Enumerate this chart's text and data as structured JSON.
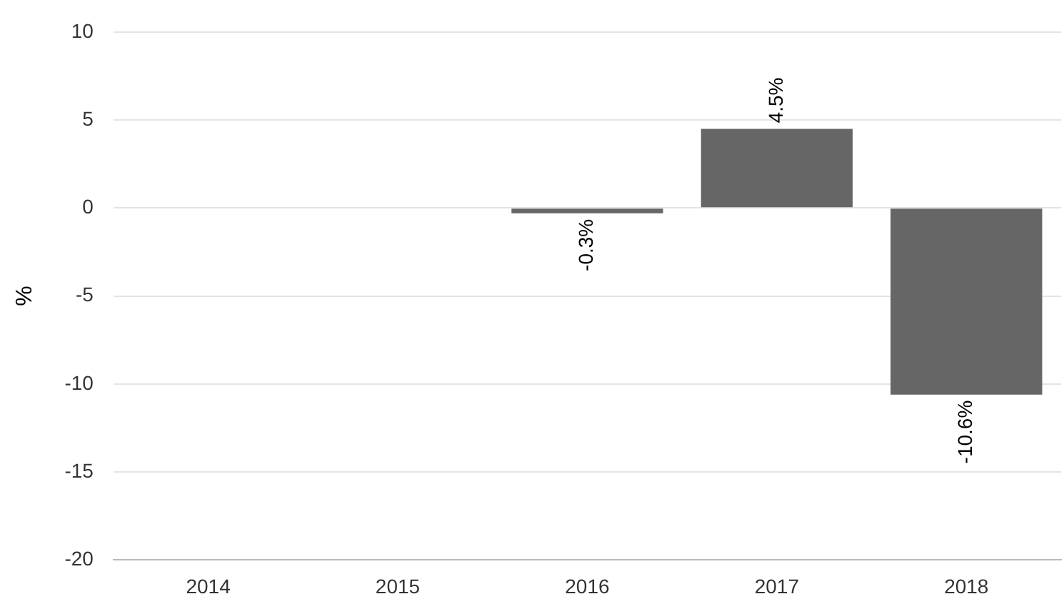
{
  "chart_data": {
    "type": "bar",
    "ylabel": "%",
    "categories": [
      "2014",
      "2015",
      "2016",
      "2017",
      "2018"
    ],
    "values": [
      null,
      null,
      -0.3,
      4.5,
      -10.6
    ],
    "value_labels": [
      null,
      null,
      "-0.3%",
      "4.5%",
      "-10.6%"
    ],
    "color": "#666666",
    "ylim": [
      -20,
      10
    ],
    "yticks": [
      -20,
      -15,
      -10,
      -5,
      0,
      5,
      10
    ],
    "grid": "y",
    "legend": false
  }
}
